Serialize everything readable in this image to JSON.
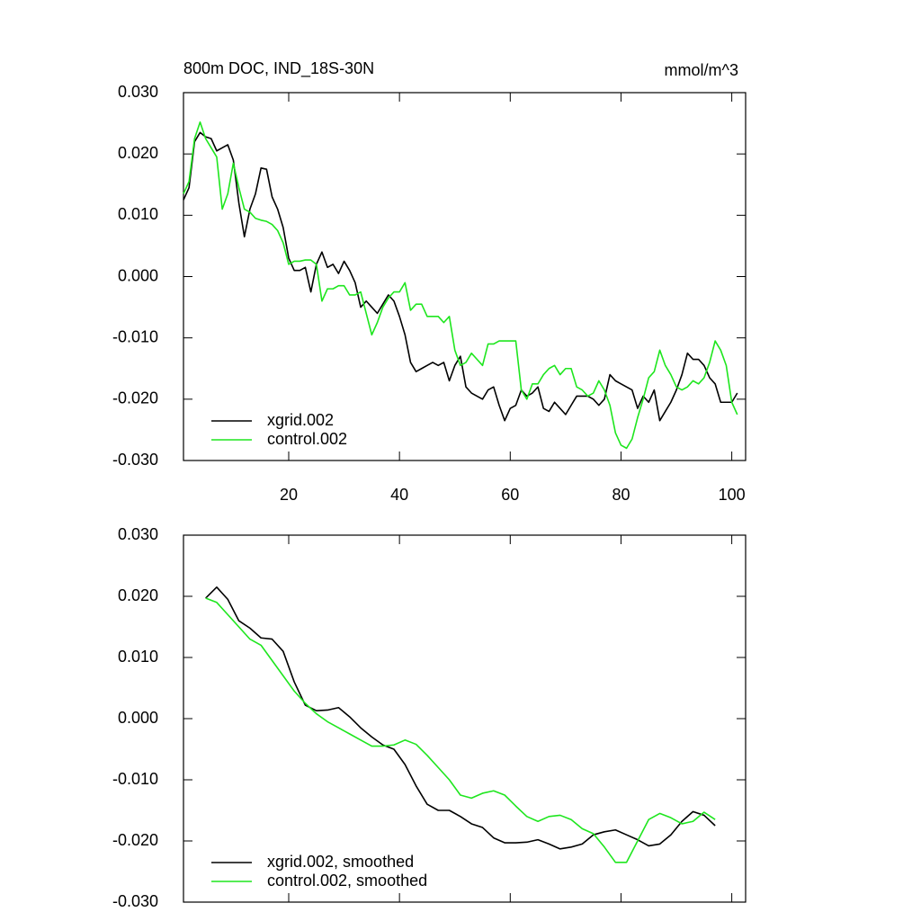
{
  "chart_data": [
    {
      "type": "line",
      "title": "800m DOC, IND_18S-30N",
      "units": "mmol/m^3",
      "legend": "lower left",
      "xlim": [
        1,
        102.5
      ],
      "ylim": [
        -0.03,
        0.03
      ],
      "xticks": [
        20,
        40,
        60,
        80,
        100
      ],
      "yticks": [
        {
          "value": -0.03,
          "label": "-0.030"
        },
        {
          "value": -0.02,
          "label": "-0.020"
        },
        {
          "value": -0.01,
          "label": "-0.010"
        },
        {
          "value": 0,
          "label": "0.000"
        },
        {
          "value": 0.01,
          "label": "0.010"
        },
        {
          "value": 0.02,
          "label": "0.020"
        },
        {
          "value": 0.03,
          "label": "0.030"
        }
      ],
      "x": [
        1,
        2,
        3,
        4,
        5,
        6,
        7,
        8,
        9,
        10,
        11,
        12,
        13,
        14,
        15,
        16,
        17,
        18,
        19,
        20,
        21,
        22,
        23,
        24,
        25,
        26,
        27,
        28,
        29,
        30,
        31,
        32,
        33,
        34,
        35,
        36,
        37,
        38,
        39,
        40,
        41,
        42,
        43,
        44,
        45,
        46,
        47,
        48,
        49,
        50,
        51,
        52,
        53,
        54,
        55,
        56,
        57,
        58,
        59,
        60,
        61,
        62,
        63,
        64,
        65,
        66,
        67,
        68,
        69,
        70,
        71,
        72,
        73,
        74,
        75,
        76,
        77,
        78,
        79,
        80,
        81,
        82,
        83,
        84,
        85,
        86,
        87,
        88,
        89,
        90,
        91,
        92,
        93,
        94,
        95,
        96,
        97,
        98,
        99,
        100,
        101
      ],
      "series": [
        {
          "name": "xgrid.002",
          "color": "#000000",
          "values": [
            0.0125,
            0.0145,
            0.022,
            0.0235,
            0.0228,
            0.0225,
            0.0205,
            0.021,
            0.0215,
            0.019,
            0.012,
            0.0065,
            0.011,
            0.0135,
            0.0177,
            0.0175,
            0.013,
            0.011,
            0.008,
            0.003,
            0.001,
            0.001,
            0.0015,
            -0.0025,
            0.002,
            0.004,
            0.0015,
            0.002,
            0.0005,
            0.0025,
            0.001,
            -0.001,
            -0.005,
            -0.004,
            -0.005,
            -0.006,
            -0.0045,
            -0.003,
            -0.004,
            -0.0065,
            -0.0095,
            -0.014,
            -0.0155,
            -0.015,
            -0.0145,
            -0.014,
            -0.0145,
            -0.014,
            -0.017,
            -0.0145,
            -0.013,
            -0.018,
            -0.019,
            -0.0195,
            -0.02,
            -0.0185,
            -0.018,
            -0.021,
            -0.0235,
            -0.0215,
            -0.021,
            -0.0185,
            -0.0195,
            -0.019,
            -0.018,
            -0.0215,
            -0.022,
            -0.0205,
            -0.0215,
            -0.0225,
            -0.021,
            -0.0195,
            -0.0195,
            -0.0195,
            -0.02,
            -0.021,
            -0.02,
            -0.016,
            -0.017,
            -0.0175,
            -0.018,
            -0.0185,
            -0.0215,
            -0.0195,
            -0.0205,
            -0.0185,
            -0.0235,
            -0.022,
            -0.0205,
            -0.0185,
            -0.016,
            -0.0125,
            -0.0135,
            -0.0135,
            -0.0145,
            -0.0165,
            -0.0175,
            -0.0205,
            -0.0205,
            -0.0205,
            -0.019
          ]
        },
        {
          "name": "control.002",
          "color": "#1ee61e",
          "values": [
            0.0135,
            0.0155,
            0.0225,
            0.0252,
            0.0225,
            0.021,
            0.0195,
            0.011,
            0.0135,
            0.0185,
            0.0145,
            0.011,
            0.0105,
            0.0095,
            0.0092,
            0.009,
            0.0085,
            0.0075,
            0.0055,
            0.002,
            0.0025,
            0.0025,
            0.0027,
            0.0027,
            0.002,
            -0.004,
            -0.002,
            -0.002,
            -0.0015,
            -0.0015,
            -0.003,
            -0.003,
            -0.0025,
            -0.006,
            -0.0095,
            -0.0075,
            -0.005,
            -0.0035,
            -0.0025,
            -0.0025,
            -0.001,
            -0.0055,
            -0.0045,
            -0.0045,
            -0.0065,
            -0.0065,
            -0.0065,
            -0.0075,
            -0.0065,
            -0.012,
            -0.0145,
            -0.014,
            -0.0125,
            -0.0135,
            -0.0145,
            -0.011,
            -0.011,
            -0.0105,
            -0.0105,
            -0.0105,
            -0.0105,
            -0.0185,
            -0.02,
            -0.0175,
            -0.0175,
            -0.016,
            -0.015,
            -0.0145,
            -0.016,
            -0.015,
            -0.015,
            -0.018,
            -0.0185,
            -0.0195,
            -0.019,
            -0.017,
            -0.0185,
            -0.021,
            -0.0255,
            -0.0275,
            -0.028,
            -0.0265,
            -0.023,
            -0.02,
            -0.0165,
            -0.0155,
            -0.012,
            -0.0145,
            -0.016,
            -0.018,
            -0.0185,
            -0.018,
            -0.017,
            -0.0175,
            -0.0165,
            -0.014,
            -0.0105,
            -0.012,
            -0.0145,
            -0.0205,
            -0.0225
          ]
        }
      ]
    },
    {
      "type": "line",
      "legend": "lower left",
      "xlim": [
        1,
        102.5
      ],
      "ylim": [
        -0.03,
        0.03
      ],
      "xticks": [
        20,
        40,
        60,
        80,
        100
      ],
      "yticks": [
        {
          "value": -0.03,
          "label": "-0.030"
        },
        {
          "value": -0.02,
          "label": "-0.020"
        },
        {
          "value": -0.01,
          "label": "-0.010"
        },
        {
          "value": 0,
          "label": "0.000"
        },
        {
          "value": 0.01,
          "label": "0.010"
        },
        {
          "value": 0.02,
          "label": "0.020"
        },
        {
          "value": 0.03,
          "label": "0.030"
        }
      ],
      "x": [
        5,
        7,
        9,
        11,
        13,
        15,
        17,
        19,
        21,
        23,
        25,
        27,
        29,
        31,
        33,
        35,
        37,
        39,
        41,
        43,
        45,
        47,
        49,
        51,
        53,
        55,
        57,
        59,
        61,
        63,
        65,
        67,
        69,
        71,
        73,
        75,
        77,
        79,
        81,
        83,
        85,
        87,
        89,
        91,
        93,
        95,
        97
      ],
      "series": [
        {
          "name": "xgrid.002, smoothed",
          "color": "#000000",
          "values": [
            0.0197,
            0.0215,
            0.0195,
            0.016,
            0.0148,
            0.0132,
            0.013,
            0.011,
            0.006,
            0.0022,
            0.0013,
            0.0014,
            0.0018,
            0.0003,
            -0.0015,
            -0.003,
            -0.0043,
            -0.005,
            -0.0075,
            -0.011,
            -0.014,
            -0.015,
            -0.015,
            -0.016,
            -0.0172,
            -0.0178,
            -0.0195,
            -0.0203,
            -0.0203,
            -0.0202,
            -0.0198,
            -0.0205,
            -0.0213,
            -0.021,
            -0.0205,
            -0.019,
            -0.0185,
            -0.0182,
            -0.019,
            -0.0198,
            -0.0208,
            -0.0205,
            -0.019,
            -0.0168,
            -0.0152,
            -0.0158,
            -0.0175
          ]
        },
        {
          "name": "control.002, smoothed",
          "color": "#1ee61e",
          "values": [
            0.0197,
            0.019,
            0.017,
            0.015,
            0.013,
            0.012,
            0.0095,
            0.007,
            0.0045,
            0.0025,
            0.0008,
            -0.0005,
            -0.0015,
            -0.0025,
            -0.0035,
            -0.0045,
            -0.0045,
            -0.0043,
            -0.0035,
            -0.0042,
            -0.006,
            -0.008,
            -0.01,
            -0.0125,
            -0.013,
            -0.0122,
            -0.0118,
            -0.0125,
            -0.0143,
            -0.016,
            -0.0168,
            -0.016,
            -0.0158,
            -0.0165,
            -0.018,
            -0.0188,
            -0.021,
            -0.0235,
            -0.0235,
            -0.02,
            -0.0165,
            -0.0155,
            -0.0162,
            -0.0172,
            -0.0168,
            -0.0153,
            -0.0165
          ]
        }
      ]
    }
  ]
}
